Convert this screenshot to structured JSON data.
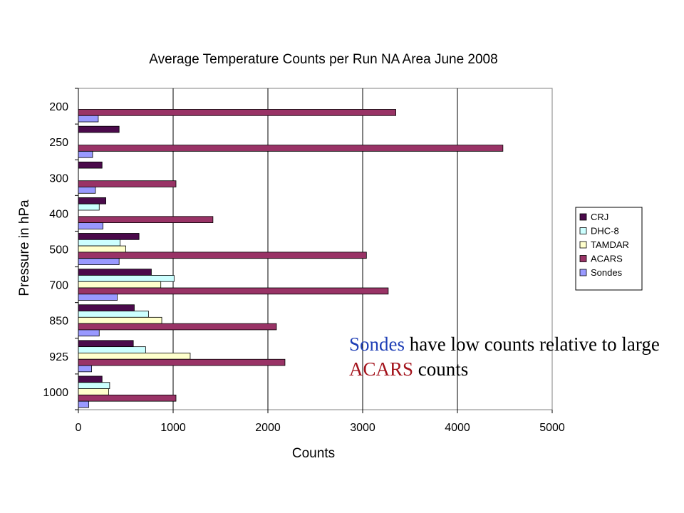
{
  "chart_data": {
    "type": "bar",
    "orientation": "horizontal",
    "title": "Average Temperature Counts per Run NA Area June 2008",
    "xlabel": "Counts",
    "ylabel": "Pressure in hPa",
    "categories": [
      "200",
      "250",
      "300",
      "400",
      "500",
      "700",
      "850",
      "925",
      "1000"
    ],
    "xlim": [
      0,
      5000
    ],
    "xticks": [
      0,
      1000,
      2000,
      3000,
      4000,
      5000
    ],
    "grid": "vertical",
    "legend_position": "right",
    "series": [
      {
        "name": "CRJ",
        "color": "#4b0a4b",
        "values": [
          0,
          430,
          250,
          290,
          640,
          770,
          590,
          580,
          250
        ]
      },
      {
        "name": "DHC-8",
        "color": "#ccffff",
        "values": [
          0,
          0,
          0,
          220,
          440,
          1010,
          740,
          710,
          330
        ]
      },
      {
        "name": "TAMDAR",
        "color": "#ffffcc",
        "values": [
          0,
          0,
          0,
          0,
          500,
          870,
          880,
          1180,
          320
        ]
      },
      {
        "name": "ACARS",
        "color": "#993366",
        "values": [
          3350,
          4480,
          1030,
          1420,
          3040,
          3270,
          2090,
          2180,
          1030
        ]
      },
      {
        "name": "Sondes",
        "color": "#9999ff",
        "values": [
          210,
          150,
          180,
          260,
          430,
          410,
          220,
          140,
          110
        ]
      }
    ]
  },
  "annotation": {
    "part1": "Sondes",
    "part2": " have low counts relative to large ",
    "part3": "ACARS",
    "part4": " counts"
  }
}
